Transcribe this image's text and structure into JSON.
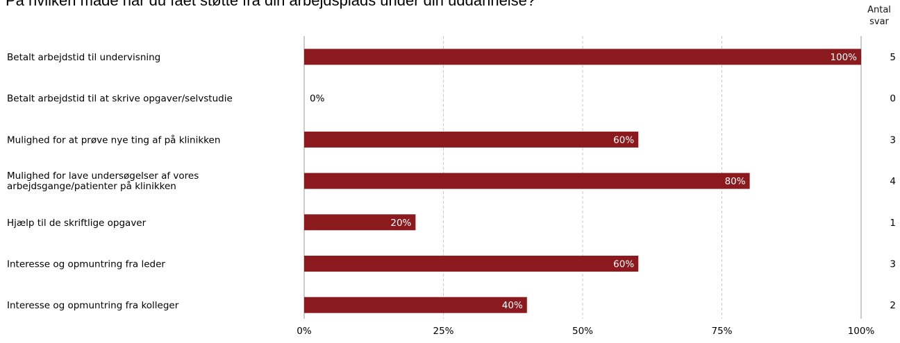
{
  "title": "På hvilken måde har du fået støtte fra din arbejdsplads under din uddannelse?",
  "count_header": [
    "Antal",
    "svar"
  ],
  "colors": {
    "bar": "#8b1a1f",
    "grid": "#c8c8c8",
    "axis": "#999999"
  },
  "chart_data": {
    "type": "bar",
    "orientation": "horizontal",
    "title": "På hvilken måde har du fået støtte fra din arbejdsplads under din uddannelse?",
    "categories": [
      [
        "Betalt arbejdstid til undervisning"
      ],
      [
        "Betalt arbejdstid til at skrive opgaver/selvstudie"
      ],
      [
        "Mulighed for at prøve nye ting af på klinikken"
      ],
      [
        "Mulighed for lave undersøgelser af vores",
        "arbejdsgange/patienter på klinikken"
      ],
      [
        "Hjælp til de skriftlige opgaver"
      ],
      [
        "Interesse og opmuntring fra leder"
      ],
      [
        "Interesse og opmuntring fra kolleger"
      ]
    ],
    "values": [
      100,
      0,
      60,
      80,
      20,
      60,
      40
    ],
    "value_labels": [
      "100%",
      "0%",
      "60%",
      "80%",
      "20%",
      "60%",
      "40%"
    ],
    "counts": [
      "5",
      "0",
      "3",
      "4",
      "1",
      "3",
      "2"
    ],
    "xlim": [
      0,
      100
    ],
    "xticks": [
      0,
      25,
      50,
      75,
      100
    ],
    "xtick_labels": [
      "0%",
      "25%",
      "50%",
      "75%",
      "100%"
    ],
    "grid": true,
    "xlabel": "",
    "ylabel": ""
  }
}
